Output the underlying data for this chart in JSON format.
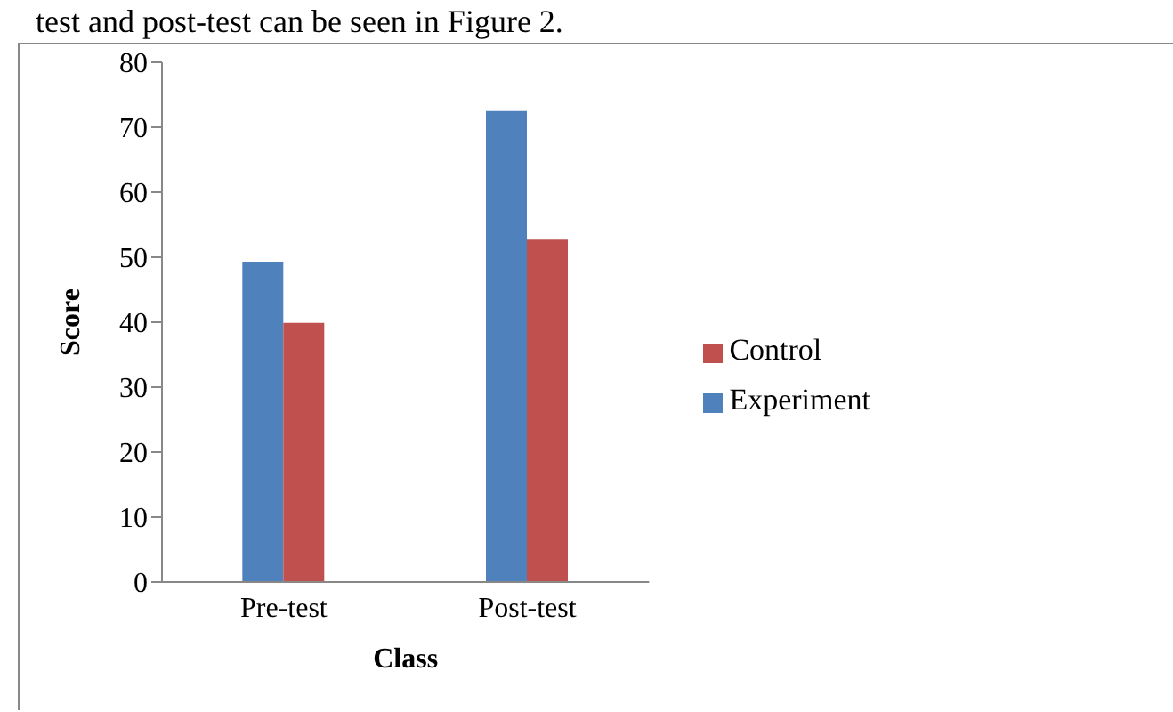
{
  "chart_data": {
    "type": "bar",
    "annotations": [
      "test and post-test can be seen in Figure 2."
    ],
    "categories": [
      "Pre-test",
      "Post-test"
    ],
    "series": [
      {
        "name": "Experiment",
        "color": "#4f81bd",
        "values": [
          49.3,
          72.5
        ]
      },
      {
        "name": "Control",
        "color": "#c0504d",
        "values": [
          39.9,
          52.7
        ]
      }
    ],
    "xlabel": "Class",
    "ylabel": "Score",
    "ylim": [
      0,
      80
    ],
    "yticks": [
      0,
      10,
      20,
      30,
      40,
      50,
      60,
      70,
      80
    ],
    "grid": false,
    "legend": "right"
  }
}
